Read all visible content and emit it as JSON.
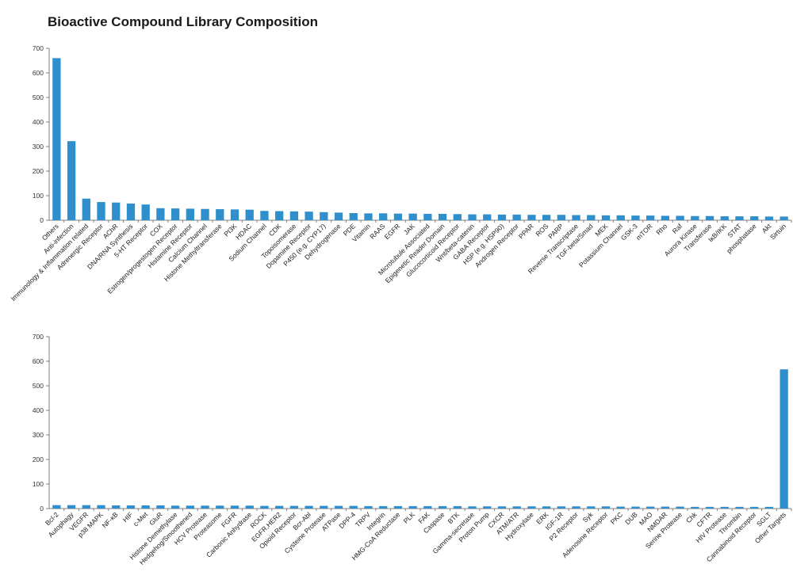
{
  "title": "Bioactive Compound Library Composition",
  "colors": {
    "bar": "#2e8fcc",
    "axis": "#7f7f7f",
    "text": "#222222"
  },
  "chart_data": [
    {
      "type": "bar",
      "ylim": [
        0,
        700
      ],
      "yticks": [
        0,
        100,
        200,
        300,
        400,
        500,
        600,
        700
      ],
      "grid": false,
      "categories": [
        "Others",
        "Anti-infection",
        "Immunology & Inflammation related",
        "Adrenergic Receptor",
        "AChR",
        "DNA/RNA Synthesis",
        "5-HT Receptor",
        "COX",
        "Estrogen/progestogen Receptor",
        "Histamine Receptor",
        "Calcium Channel",
        "Histone Methyltransferase",
        "PI3K",
        "HDAC",
        "Sodium Channel",
        "CDK",
        "Topoisomerase",
        "Dopamine Receptor",
        "P450 (e.g. CYP17)",
        "Dehydrogenase",
        "PDE",
        "Vitamin",
        "RAAS",
        "EGFR",
        "JAK",
        "Microtubule Associated",
        "Epigenetic Reader Domain",
        "Glucocorticoid Receptor",
        "Wnt/beta-catenin",
        "GABA Receptor",
        "HSP (e.g. HSP90)",
        "Androgen Receptor",
        "PPAR",
        "ROS",
        "PARP",
        "Reverse Transcriptase",
        "TGF-beta/Smad",
        "MEK",
        "Potassium Channel",
        "GSK-3",
        "mTOR",
        "Rho",
        "Raf",
        "Aurora Kinase",
        "Transferase",
        "IκB/IKK",
        "STAT",
        "phosphatase",
        "Akt",
        "Sirtuin"
      ],
      "values": [
        660,
        322,
        88,
        74,
        72,
        68,
        64,
        49,
        48,
        47,
        46,
        45,
        44,
        43,
        38,
        37,
        36,
        35,
        33,
        31,
        29,
        28,
        28,
        27,
        27,
        26,
        26,
        25,
        24,
        24,
        23,
        23,
        22,
        22,
        22,
        21,
        21,
        20,
        20,
        19,
        19,
        18,
        18,
        17,
        17,
        16,
        16,
        16,
        15,
        15
      ]
    },
    {
      "type": "bar",
      "ylim": [
        0,
        700
      ],
      "yticks": [
        0,
        100,
        200,
        300,
        400,
        500,
        600,
        700
      ],
      "grid": false,
      "categories": [
        "Bcl-2",
        "Autophagy",
        "VEGFR",
        "p38 MAPK",
        "NF-κB",
        "HIF",
        "c-Met",
        "GluR",
        "Histone Demethylase",
        "Hedgehog/Smoothened",
        "HCV Protease",
        "Proteasome",
        "FGFR",
        "Carbonic Anhydrase",
        "ROCK",
        "EGFR,HER2",
        "Opioid Receptor",
        "Bcr-Abl",
        "Cysteine Protease",
        "ATPase",
        "DPP-4",
        "TRPV",
        "Integrin",
        "HMG-CoA Reductase",
        "PLK",
        "FAK",
        "Caspase",
        "BTK",
        "Gamma-secretase",
        "Proton Pump",
        "CXCR",
        "ATM/ATR",
        "Hydroxylase",
        "ERK",
        "IGF-1R",
        "P2 Receptor",
        "Syk",
        "Adenosine Receptor",
        "PKC",
        "DUB",
        "MAO",
        "NMDAR",
        "Serine Protease",
        "Chk",
        "CFTR",
        "HIV Protease",
        "Thrombin",
        "Cannabinoid Receptor",
        "SGLT",
        "Other Targets"
      ],
      "values": [
        14,
        14,
        14,
        14,
        13,
        13,
        13,
        13,
        12,
        12,
        12,
        12,
        12,
        12,
        11,
        11,
        11,
        11,
        11,
        11,
        11,
        10,
        10,
        10,
        10,
        10,
        10,
        10,
        9,
        9,
        9,
        9,
        9,
        9,
        9,
        9,
        9,
        9,
        8,
        8,
        8,
        8,
        8,
        7,
        7,
        7,
        7,
        7,
        7,
        567
      ]
    }
  ]
}
